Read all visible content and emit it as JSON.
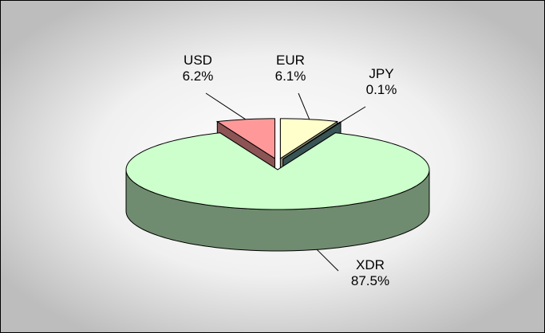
{
  "chart_data": {
    "type": "pie",
    "categories": [
      "USD",
      "EUR",
      "JPY",
      "XDR"
    ],
    "values": [
      6.2,
      6.1,
      0.1,
      87.5
    ],
    "value_labels": [
      "6.2%",
      "6.1%",
      "0.1%",
      "87.5%"
    ],
    "colors": [
      "#ff9999",
      "#ffffcc",
      "#669999",
      "#ccffcc"
    ]
  }
}
